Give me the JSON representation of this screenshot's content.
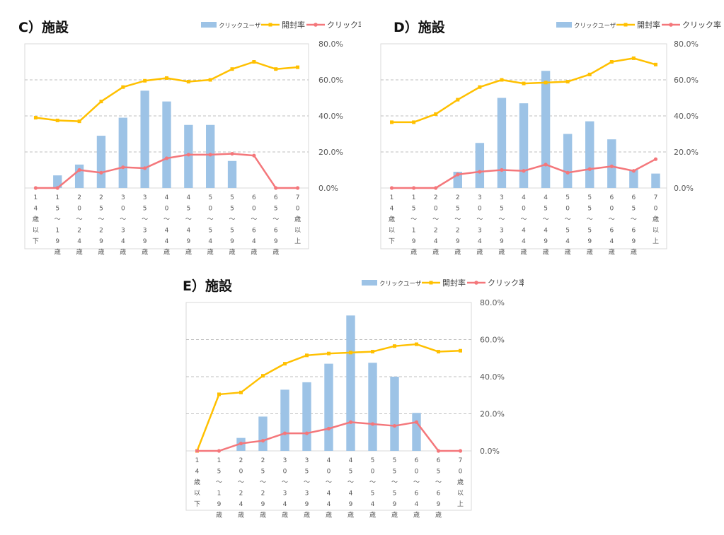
{
  "chart_data": [
    {
      "type": "bar+line",
      "title": "C）施設",
      "categories": [
        "14歳以下",
        "15〜19歳",
        "20〜24歳",
        "25〜29歳",
        "30〜34歳",
        "35〜39歳",
        "40〜44歳",
        "45〜49歳",
        "50〜54歳",
        "55〜59歳",
        "60〜64歳",
        "65〜69歳",
        "70歳以上"
      ],
      "bar_series": {
        "name": "クリックユーザー",
        "values": [
          0,
          7,
          13,
          29,
          39,
          54,
          48,
          35,
          35,
          15,
          0,
          0,
          0
        ]
      },
      "line_series": [
        {
          "name": "開封率",
          "values": [
            39,
            37.5,
            37,
            48,
            56,
            59.5,
            61,
            59,
            60,
            66,
            70,
            66,
            67
          ]
        },
        {
          "name": "クリック率",
          "values": [
            0,
            0,
            10,
            8.5,
            11.5,
            11,
            16.5,
            18.5,
            18.5,
            19,
            18,
            0,
            0
          ]
        }
      ],
      "y_right_ticks": [
        "80.0%",
        "60.0%",
        "40.0%",
        "20.0%",
        "0.0%"
      ],
      "ylim": [
        0,
        80
      ],
      "legend": [
        "クリックユーザー",
        "開封率",
        "クリック率"
      ]
    },
    {
      "type": "bar+line",
      "title": "D）施設",
      "categories": [
        "14歳以下",
        "15〜19歳",
        "20〜24歳",
        "25〜29歳",
        "30〜34歳",
        "35〜39歳",
        "40〜44歳",
        "45〜49歳",
        "50〜54歳",
        "55〜59歳",
        "60〜64歳",
        "65〜69歳",
        "70歳以上"
      ],
      "bar_series": {
        "name": "クリックユーザー",
        "values": [
          0,
          0,
          0,
          9,
          25,
          50,
          47,
          65,
          30,
          37,
          27,
          10,
          8
        ]
      },
      "line_series": [
        {
          "name": "開封率",
          "values": [
            36.5,
            36.5,
            41,
            49,
            56,
            60,
            58,
            58.5,
            59,
            63,
            70,
            72,
            68.5
          ]
        },
        {
          "name": "クリック率",
          "values": [
            0,
            0,
            0,
            7.5,
            9,
            10,
            9.5,
            13,
            8.5,
            10.5,
            12,
            9.5,
            16
          ]
        }
      ],
      "y_right_ticks": [
        "80.0%",
        "60.0%",
        "40.0%",
        "20.0%",
        "0.0%"
      ],
      "ylim": [
        0,
        80
      ],
      "legend": [
        "クリックユーザー",
        "開封率",
        "クリック率"
      ]
    },
    {
      "type": "bar+line",
      "title": "E）施設",
      "categories": [
        "14歳以下",
        "15〜19歳",
        "20〜24歳",
        "25〜29歳",
        "30〜34歳",
        "35〜39歳",
        "40〜44歳",
        "45〜49歳",
        "50〜54歳",
        "55〜59歳",
        "60〜64歳",
        "65〜69歳",
        "70歳以上"
      ],
      "bar_series": {
        "name": "クリックユーザー",
        "values": [
          0,
          0,
          7,
          18.5,
          33,
          37,
          47,
          73,
          47.5,
          40,
          20.5,
          0,
          0
        ]
      },
      "line_series": [
        {
          "name": "開封率",
          "values": [
            0,
            30.5,
            31.5,
            40.5,
            47,
            51.5,
            52.5,
            53,
            53.5,
            56.5,
            57.5,
            53.5,
            54
          ]
        },
        {
          "name": "クリック率",
          "values": [
            0,
            0,
            4,
            5.5,
            9.5,
            9.5,
            12,
            15.5,
            14.5,
            13.5,
            15.5,
            0,
            0
          ]
        }
      ],
      "y_right_ticks": [
        "80.0%",
        "60.0%",
        "40.0%",
        "20.0%",
        "0.0%"
      ],
      "ylim": [
        0,
        80
      ],
      "legend": [
        "クリックユーザー",
        "開封率",
        "クリック率"
      ]
    }
  ],
  "colors": {
    "bar": "#9dc3e6",
    "open_rate": "#ffc000",
    "click_rate": "#f4777b",
    "grid": "#bfbfbf",
    "axis_text": "#595959"
  }
}
